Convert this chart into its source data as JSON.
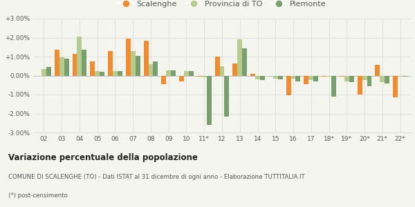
{
  "categories": [
    "02",
    "03",
    "04",
    "05",
    "06",
    "07",
    "08",
    "09",
    "10",
    "11*",
    "12",
    "13",
    "14",
    "15",
    "16",
    "17",
    "18*",
    "19*",
    "20*",
    "21*",
    "22*"
  ],
  "scalenghe": [
    0.0,
    1.35,
    1.15,
    0.75,
    1.3,
    1.95,
    1.85,
    -0.45,
    -0.3,
    -0.05,
    1.0,
    0.65,
    0.1,
    0.0,
    -1.05,
    -0.45,
    -0.05,
    -0.05,
    -1.0,
    0.55,
    -1.15
  ],
  "provincia_to": [
    0.35,
    0.95,
    2.05,
    0.25,
    0.25,
    1.3,
    0.6,
    0.28,
    0.22,
    -0.1,
    0.5,
    1.9,
    -0.2,
    -0.15,
    -0.15,
    -0.25,
    -0.05,
    -0.3,
    -0.25,
    -0.35,
    -0.05
  ],
  "piemonte": [
    0.45,
    0.9,
    1.35,
    0.2,
    0.25,
    1.05,
    0.75,
    0.28,
    0.22,
    -2.6,
    -2.15,
    1.45,
    -0.25,
    -0.2,
    -0.3,
    -0.3,
    -1.1,
    -0.35,
    -0.55,
    -0.4,
    -0.05
  ],
  "color_scalenghe": "#f28a30",
  "color_provincia": "#b5cc8e",
  "color_piemonte": "#7a9e6e",
  "ylim": [
    -3.0,
    3.0
  ],
  "yticks": [
    -3.0,
    -2.0,
    -1.0,
    0.0,
    1.0,
    2.0,
    3.0
  ],
  "ytick_labels": [
    "-3.00%",
    "-2.00%",
    "-1.00%",
    "0.00%",
    "+1.00%",
    "+2.00%",
    "+3.00%"
  ],
  "legend_labels": [
    "Scalenghe",
    "Provincia di TO",
    "Piemonte"
  ],
  "title_bold": "Variazione percentuale della popolazione",
  "footnote1": "COMUNE DI SCALENGHE (TO) - Dati ISTAT al 31 dicembre di ogni anno - Elaborazione TUTTITALIA.IT",
  "footnote2": "(*) post-censimento",
  "bg_color": "#f5f5f0",
  "grid_color": "#dddddd",
  "text_color": "#555555",
  "title_color": "#222222"
}
